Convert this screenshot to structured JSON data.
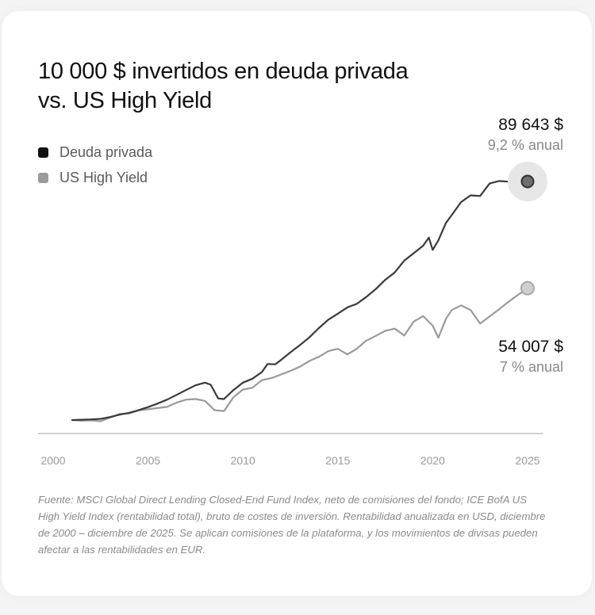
{
  "title_line1": "10 000 $ invertidos en deuda privada",
  "title_line2": "vs. US High Yield",
  "footnote": "Fuente: MSCI Global Direct Lending Closed-End Fund Index, neto de comisiones del fondo; ICE BofA US High Yield Index (rentabilidad total), bruto de costes de inversión. Rentabilidad anualizada en USD, diciembre de 2000 – diciembre de 2025. Se aplican comisiones de la plataforma, y los movimientos de divisas pueden afectar a las rentabilidades en EUR.",
  "colors": {
    "private_debt": "#3a3a3a",
    "high_yield": "#9a9a9a",
    "axis": "#cfcfcf"
  },
  "chart_data": {
    "type": "line",
    "title": "10 000 $ invertidos en deuda privada vs. US High Yield",
    "xlim": [
      2000,
      2025
    ],
    "x_ticks": [
      "2000",
      "2005",
      "2010",
      "2015",
      "2020",
      "2025"
    ],
    "grid": false,
    "legend_position": "top-left",
    "series": [
      {
        "name": "Deuda privada",
        "end_value_label": "89 643 $",
        "end_rate_label": "9,2 % anual",
        "points": [
          [
            2001.0,
            10000
          ],
          [
            2001.5,
            10100
          ],
          [
            2002.0,
            10200
          ],
          [
            2002.5,
            10400
          ],
          [
            2003.0,
            11000
          ],
          [
            2003.5,
            11800
          ],
          [
            2004.0,
            12400
          ],
          [
            2004.5,
            13300
          ],
          [
            2005.0,
            14300
          ],
          [
            2005.5,
            15500
          ],
          [
            2006.0,
            16800
          ],
          [
            2006.5,
            18400
          ],
          [
            2007.0,
            20000
          ],
          [
            2007.5,
            21600
          ],
          [
            2008.0,
            22500
          ],
          [
            2008.3,
            21800
          ],
          [
            2008.7,
            17200
          ],
          [
            2009.0,
            17000
          ],
          [
            2009.5,
            20000
          ],
          [
            2010.0,
            22500
          ],
          [
            2010.5,
            23800
          ],
          [
            2011.0,
            26000
          ],
          [
            2011.3,
            28700
          ],
          [
            2011.7,
            28600
          ],
          [
            2012.0,
            30000
          ],
          [
            2012.5,
            32600
          ],
          [
            2013.0,
            35000
          ],
          [
            2013.5,
            37600
          ],
          [
            2014.0,
            40700
          ],
          [
            2014.5,
            43500
          ],
          [
            2015.0,
            45500
          ],
          [
            2015.5,
            47600
          ],
          [
            2016.0,
            48800
          ],
          [
            2016.5,
            51100
          ],
          [
            2017.0,
            53700
          ],
          [
            2017.5,
            56800
          ],
          [
            2018.0,
            59300
          ],
          [
            2018.5,
            63200
          ],
          [
            2019.0,
            65700
          ],
          [
            2019.5,
            68200
          ],
          [
            2019.8,
            70900
          ],
          [
            2020.0,
            66800
          ],
          [
            2020.3,
            70000
          ],
          [
            2020.7,
            75800
          ],
          [
            2021.0,
            78400
          ],
          [
            2021.5,
            82800
          ],
          [
            2022.0,
            85000
          ],
          [
            2022.5,
            84800
          ],
          [
            2023.0,
            89000
          ],
          [
            2023.5,
            89800
          ],
          [
            2024.0,
            89600
          ],
          [
            2024.5,
            89600
          ],
          [
            2025.0,
            89643
          ]
        ]
      },
      {
        "name": "US High Yield",
        "end_value_label": "54 007 $",
        "end_rate_label": "7 % anual",
        "points": [
          [
            2001.0,
            10000
          ],
          [
            2001.5,
            9800
          ],
          [
            2002.0,
            9900
          ],
          [
            2002.5,
            9600
          ],
          [
            2003.0,
            10800
          ],
          [
            2003.5,
            12000
          ],
          [
            2004.0,
            12200
          ],
          [
            2004.5,
            13200
          ],
          [
            2005.0,
            13600
          ],
          [
            2005.5,
            14000
          ],
          [
            2006.0,
            14400
          ],
          [
            2006.5,
            15800
          ],
          [
            2007.0,
            16800
          ],
          [
            2007.5,
            17000
          ],
          [
            2008.0,
            16400
          ],
          [
            2008.5,
            13300
          ],
          [
            2009.0,
            13000
          ],
          [
            2009.5,
            17600
          ],
          [
            2010.0,
            20200
          ],
          [
            2010.5,
            20800
          ],
          [
            2011.0,
            23300
          ],
          [
            2011.5,
            24000
          ],
          [
            2012.0,
            25200
          ],
          [
            2012.5,
            26400
          ],
          [
            2013.0,
            27800
          ],
          [
            2013.5,
            29700
          ],
          [
            2014.0,
            31100
          ],
          [
            2014.5,
            33000
          ],
          [
            2015.0,
            33800
          ],
          [
            2015.5,
            31900
          ],
          [
            2016.0,
            33800
          ],
          [
            2016.5,
            36500
          ],
          [
            2017.0,
            38100
          ],
          [
            2017.5,
            39800
          ],
          [
            2018.0,
            40500
          ],
          [
            2018.5,
            38200
          ],
          [
            2019.0,
            42900
          ],
          [
            2019.5,
            44700
          ],
          [
            2020.0,
            41500
          ],
          [
            2020.3,
            37500
          ],
          [
            2020.7,
            43800
          ],
          [
            2021.0,
            46700
          ],
          [
            2021.5,
            48300
          ],
          [
            2022.0,
            46700
          ],
          [
            2022.5,
            42200
          ],
          [
            2023.0,
            44600
          ],
          [
            2023.5,
            47000
          ],
          [
            2024.0,
            49500
          ],
          [
            2024.5,
            51800
          ],
          [
            2025.0,
            54007
          ]
        ]
      }
    ]
  }
}
